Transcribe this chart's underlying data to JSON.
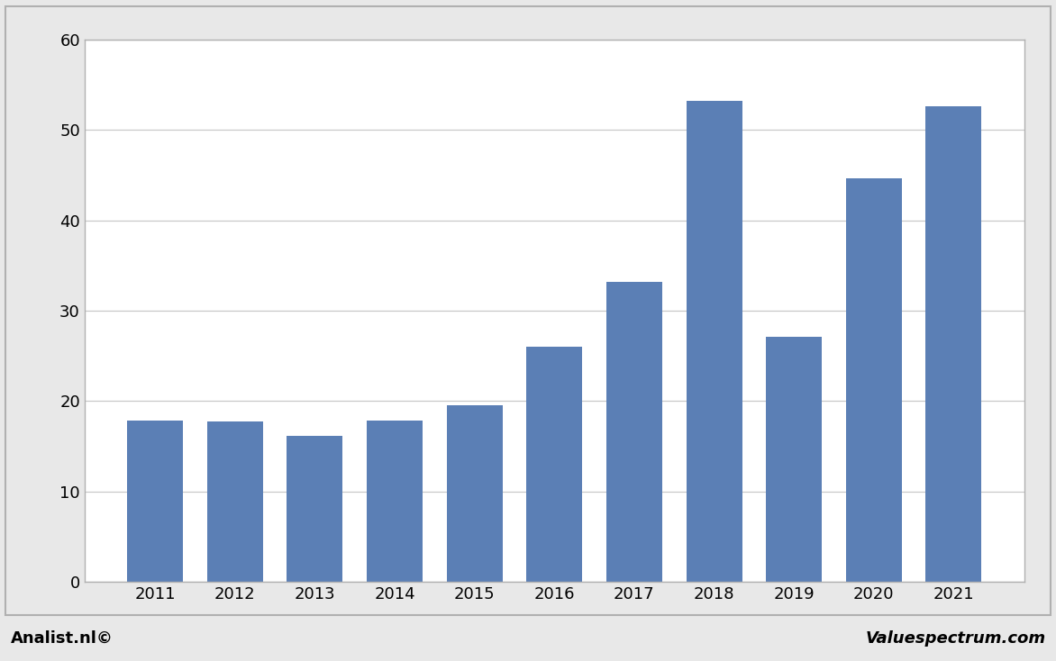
{
  "years": [
    "2011",
    "2012",
    "2013",
    "2014",
    "2015",
    "2016",
    "2017",
    "2018",
    "2019",
    "2020",
    "2021"
  ],
  "values": [
    17.8,
    17.7,
    16.1,
    17.8,
    19.5,
    26.0,
    33.2,
    53.2,
    27.1,
    44.7,
    52.6
  ],
  "bar_color": "#5b7fb5",
  "background_color": "#e8e8e8",
  "plot_bg_color": "#ffffff",
  "border_color": "#b0b0b0",
  "grid_color": "#c8c8c8",
  "ylim": [
    0,
    60
  ],
  "yticks": [
    0,
    10,
    20,
    30,
    40,
    50,
    60
  ],
  "footer_left": "Analist.nl©",
  "footer_right": "Valuespectrum.com",
  "footer_fontsize": 13,
  "tick_fontsize": 13
}
